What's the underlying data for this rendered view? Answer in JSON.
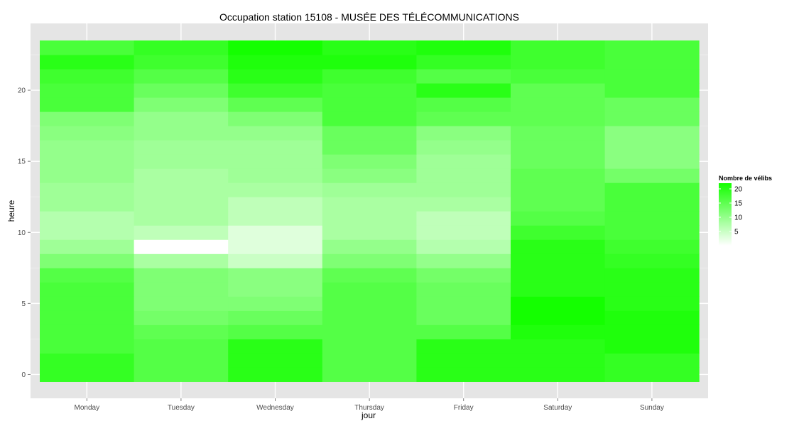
{
  "chart_data": {
    "type": "heatmap",
    "title": "Occupation station 15108 - MUSÉE DES TÉLÉCOMMUNICATIONS",
    "xlabel": "jour",
    "ylabel": "heure",
    "x": [
      "Monday",
      "Tuesday",
      "Wednesday",
      "Thursday",
      "Friday",
      "Saturday",
      "Sunday"
    ],
    "y": [
      0,
      1,
      2,
      3,
      4,
      5,
      6,
      7,
      8,
      9,
      10,
      11,
      12,
      13,
      14,
      15,
      16,
      17,
      18,
      19,
      20,
      21,
      22,
      23
    ],
    "y_ticks": [
      0,
      5,
      10,
      15,
      20
    ],
    "values": [
      [
        19,
        16,
        20,
        16,
        20,
        20,
        19
      ],
      [
        19,
        16,
        20,
        16,
        20,
        20,
        19
      ],
      [
        17,
        16,
        20,
        16,
        20,
        20,
        21
      ],
      [
        17,
        15,
        16,
        16,
        16,
        21,
        21
      ],
      [
        17,
        13,
        14,
        16,
        14,
        22,
        21
      ],
      [
        17,
        12,
        12,
        16,
        14,
        22,
        20
      ],
      [
        17,
        12,
        11,
        16,
        14,
        20,
        20
      ],
      [
        16,
        12,
        11,
        15,
        13,
        20,
        20
      ],
      [
        12,
        8,
        5,
        12,
        10,
        20,
        19
      ],
      [
        9,
        0,
        3,
        10,
        7,
        20,
        18
      ],
      [
        7,
        6,
        3,
        8,
        6,
        18,
        17
      ],
      [
        7,
        8,
        6,
        8,
        6,
        16,
        17
      ],
      [
        9,
        8,
        6,
        8,
        8,
        15,
        17
      ],
      [
        9,
        8,
        8,
        9,
        9,
        15,
        17
      ],
      [
        10,
        8,
        9,
        11,
        9,
        15,
        13
      ],
      [
        10,
        9,
        9,
        12,
        9,
        14,
        11
      ],
      [
        10,
        9,
        9,
        14,
        10,
        14,
        11
      ],
      [
        11,
        10,
        10,
        14,
        11,
        14,
        11
      ],
      [
        12,
        10,
        12,
        17,
        15,
        15,
        14
      ],
      [
        17,
        12,
        15,
        17,
        16,
        15,
        14
      ],
      [
        17,
        14,
        18,
        17,
        20,
        15,
        17
      ],
      [
        18,
        16,
        20,
        18,
        16,
        17,
        17
      ],
      [
        20,
        18,
        21,
        21,
        19,
        18,
        17
      ],
      [
        17,
        19,
        22,
        20,
        21,
        18,
        17
      ]
    ],
    "legend": {
      "title": "Nombre de vélibs",
      "ticks": [
        5,
        10,
        15,
        20
      ],
      "range": [
        0,
        22
      ],
      "placement": "right"
    },
    "color_low": "#ffffff",
    "color_high": "#14ff00",
    "panel_background": "#e5e5e5",
    "grid_color": "#ffffff",
    "grid": true,
    "ylim": [
      -0.5,
      23.5
    ]
  }
}
